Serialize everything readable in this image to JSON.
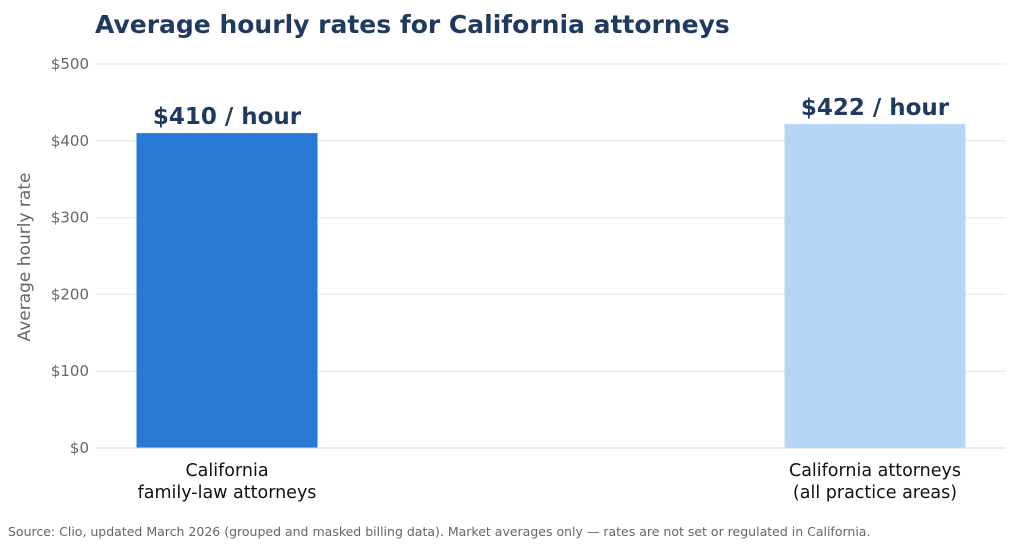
{
  "chart_data": {
    "type": "bar",
    "title": "Average hourly rates for California attorneys",
    "ylabel": "Average hourly rate",
    "xlabel": "",
    "ylim": [
      0,
      500
    ],
    "yticks": [
      0,
      100,
      200,
      300,
      400,
      500
    ],
    "ytick_labels": [
      "$0",
      "$100",
      "$200",
      "$300",
      "$400",
      "$500"
    ],
    "categories": [
      [
        "California",
        "family-law attorneys"
      ],
      [
        "California attorneys",
        "(all practice areas)"
      ]
    ],
    "values": [
      410,
      422
    ],
    "data_labels": [
      "$410 / hour",
      "$422 / hour"
    ],
    "colors": [
      "#2878d6",
      "#b6d4f3"
    ],
    "grid": true,
    "legend": "none"
  },
  "source": "Source: Clio, updated March 2026 (grouped and masked billing data). Market averages only — rates are not set or regulated in California."
}
